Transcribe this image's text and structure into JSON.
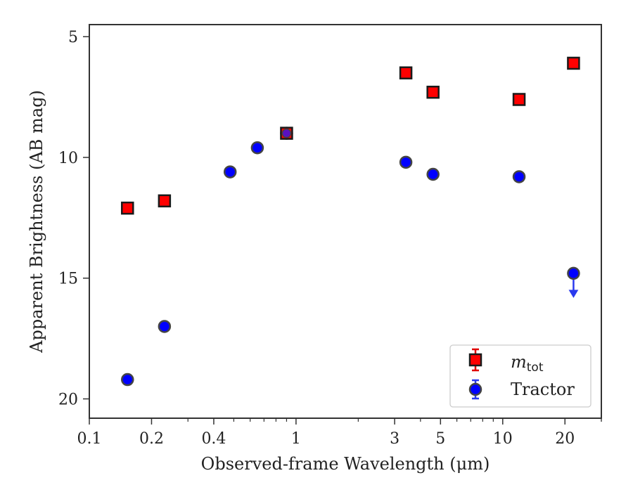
{
  "chart_data": {
    "type": "scatter",
    "xlabel": "Observed-frame Wavelength (μm)",
    "ylabel": "Apparent Brightness (AB mag)",
    "x_scale": "log",
    "xlim": [
      0.1,
      30
    ],
    "ylim": [
      20.8,
      4.5
    ],
    "y_inverted": true,
    "x_ticks": [
      0.1,
      0.2,
      0.4,
      1,
      3,
      5,
      10,
      20
    ],
    "x_tick_labels": [
      "0.1",
      "0.2",
      "0.4",
      "1",
      "3",
      "5",
      "10",
      "20"
    ],
    "y_ticks": [
      5,
      10,
      15,
      20
    ],
    "y_tick_labels": [
      "5",
      "10",
      "15",
      "20"
    ],
    "legend_position": "lower-right",
    "series": [
      {
        "name": "m",
        "name_subscript": "tot",
        "marker": "square",
        "color": "#ff0000",
        "edge_color": "#1a1a1a",
        "x": [
          0.153,
          0.231,
          0.9,
          3.4,
          4.6,
          12.0,
          22.0
        ],
        "y": [
          12.1,
          11.8,
          9.0,
          6.5,
          7.3,
          7.6,
          6.1
        ]
      },
      {
        "name": "Tractor",
        "marker": "circle",
        "color": "#0000ff",
        "edge_color": "#444444",
        "x": [
          0.153,
          0.231,
          0.48,
          0.65,
          0.9,
          3.4,
          4.6,
          12.0,
          22.0
        ],
        "y": [
          19.2,
          17.0,
          10.6,
          9.6,
          9.0,
          10.2,
          10.7,
          10.8,
          14.8
        ],
        "upper_limit": [
          false,
          false,
          false,
          false,
          false,
          false,
          false,
          false,
          true
        ],
        "limit_color": "#2a3aee"
      }
    ]
  }
}
